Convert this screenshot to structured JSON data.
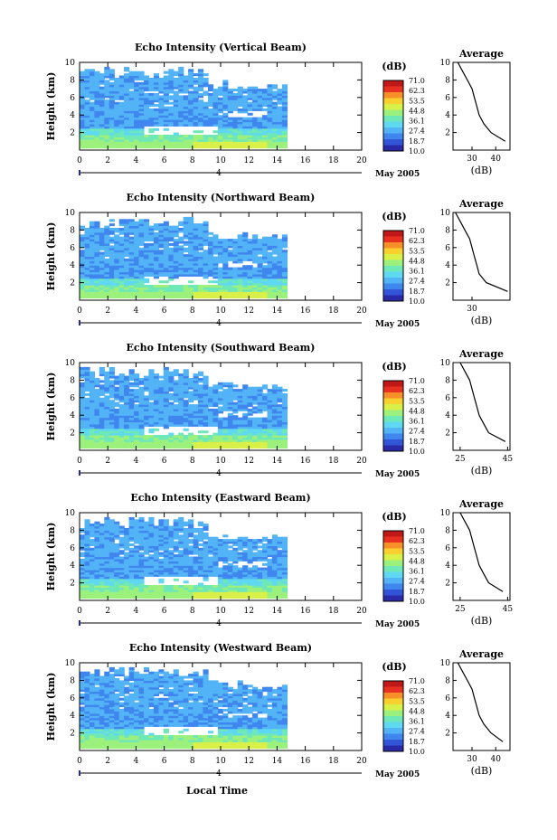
{
  "figure": {
    "xlabel_bottom": "Local Time",
    "date_label": "May 2005",
    "day_marker": "4",
    "colorbar_unit": "(dB)",
    "colorbar_ticks": [
      "71.0",
      "62.3",
      "53.5",
      "44.8",
      "36.1",
      "27.4",
      "18.7",
      "10.0"
    ],
    "colorbar_colors": [
      "#2a2aa8",
      "#3155d6",
      "#3f86ee",
      "#52b4f6",
      "#5fd8f2",
      "#6fe8b8",
      "#9cf07c",
      "#d8f048",
      "#f8d030",
      "#f8902a",
      "#e83020",
      "#c01818"
    ],
    "avg_title": "Average",
    "avg_xlabel": "(dB)",
    "yaxis_label": "Height (km)"
  },
  "chart_data": [
    {
      "type": "heatmap",
      "title": "Echo Intensity (Vertical Beam)",
      "xlabel": "",
      "ylabel": "Height (km)",
      "xlim": [
        0,
        20
      ],
      "ylim": [
        0,
        10
      ],
      "xticks": [
        "0",
        "2",
        "4",
        "6",
        "8",
        "10",
        "12",
        "14",
        "16",
        "18",
        "20"
      ],
      "yticks": [
        "2",
        "4",
        "6",
        "8",
        "10"
      ],
      "data_end_hour": 14.5,
      "bands_dB": {
        "low_0_2km": 55,
        "mid_2_4km": 38,
        "upper_4_9km": 30
      },
      "average_profile": {
        "type": "line",
        "xticks": [
          "30",
          "40"
        ],
        "xlim": [
          22,
          46
        ],
        "heights_km": [
          1,
          2,
          3,
          4,
          5,
          6,
          7,
          8,
          9,
          10
        ],
        "values_dB": [
          44,
          38,
          35,
          33,
          32,
          31,
          30,
          28,
          26,
          24
        ]
      }
    },
    {
      "type": "heatmap",
      "title": "Echo Intensity (Northward Beam)",
      "xlabel": "",
      "ylabel": "Height (km)",
      "xlim": [
        0,
        20
      ],
      "ylim": [
        0,
        10
      ],
      "xticks": [
        "0",
        "2",
        "4",
        "6",
        "8",
        "10",
        "12",
        "14",
        "16",
        "18",
        "20"
      ],
      "yticks": [
        "2",
        "4",
        "6",
        "8",
        "10"
      ],
      "data_end_hour": 14.5,
      "average_profile": {
        "type": "line",
        "xticks": [
          "30"
        ],
        "xlim": [
          22,
          46
        ],
        "heights_km": [
          1,
          2,
          3,
          4,
          5,
          6,
          7,
          8,
          9,
          10
        ],
        "values_dB": [
          45,
          36,
          33,
          32,
          31,
          30,
          29,
          27,
          25,
          23
        ]
      }
    },
    {
      "type": "heatmap",
      "title": "Echo Intensity (Southward Beam)",
      "xlabel": "",
      "ylabel": "Height (km)",
      "xlim": [
        0,
        20
      ],
      "ylim": [
        0,
        10
      ],
      "xticks": [
        "0",
        "2",
        "4",
        "6",
        "8",
        "10",
        "12",
        "14",
        "16",
        "18",
        "20"
      ],
      "yticks": [
        "2",
        "4",
        "6",
        "8",
        "10"
      ],
      "data_end_hour": 14.5,
      "average_profile": {
        "type": "line",
        "xticks": [
          "25",
          "45"
        ],
        "xlim": [
          22,
          46
        ],
        "heights_km": [
          1,
          2,
          3,
          4,
          5,
          6,
          7,
          8,
          9,
          10
        ],
        "values_dB": [
          44,
          37,
          35,
          33,
          32,
          31,
          30,
          29,
          27,
          25
        ]
      }
    },
    {
      "type": "heatmap",
      "title": "Echo Intensity (Eastward Beam)",
      "xlabel": "",
      "ylabel": "Height (km)",
      "xlim": [
        0,
        20
      ],
      "ylim": [
        0,
        10
      ],
      "xticks": [
        "0",
        "2",
        "4",
        "6",
        "8",
        "10",
        "12",
        "14",
        "16",
        "18",
        "20"
      ],
      "yticks": [
        "2",
        "4",
        "6",
        "8",
        "10"
      ],
      "data_end_hour": 14.5,
      "average_profile": {
        "type": "line",
        "xticks": [
          "25",
          "45"
        ],
        "xlim": [
          22,
          46
        ],
        "heights_km": [
          1,
          2,
          3,
          4,
          5,
          6,
          7,
          8,
          9,
          10
        ],
        "values_dB": [
          43,
          37,
          35,
          33,
          32,
          31,
          30,
          29,
          27,
          25
        ]
      }
    },
    {
      "type": "heatmap",
      "title": "Echo Intensity (Westward Beam)",
      "xlabel": "Local Time",
      "ylabel": "Height (km)",
      "xlim": [
        0,
        20
      ],
      "ylim": [
        0,
        10
      ],
      "xticks": [
        "0",
        "2",
        "4",
        "6",
        "8",
        "10",
        "12",
        "14",
        "16",
        "18",
        "20"
      ],
      "yticks": [
        "2",
        "4",
        "6",
        "8",
        "10"
      ],
      "data_end_hour": 14.5,
      "average_profile": {
        "type": "line",
        "xticks": [
          "30",
          "40"
        ],
        "xlim": [
          22,
          46
        ],
        "heights_km": [
          1,
          2,
          3,
          4,
          5,
          6,
          7,
          8,
          9,
          10
        ],
        "values_dB": [
          43,
          38,
          35,
          33,
          32,
          31,
          30,
          28,
          26,
          24
        ]
      }
    }
  ]
}
